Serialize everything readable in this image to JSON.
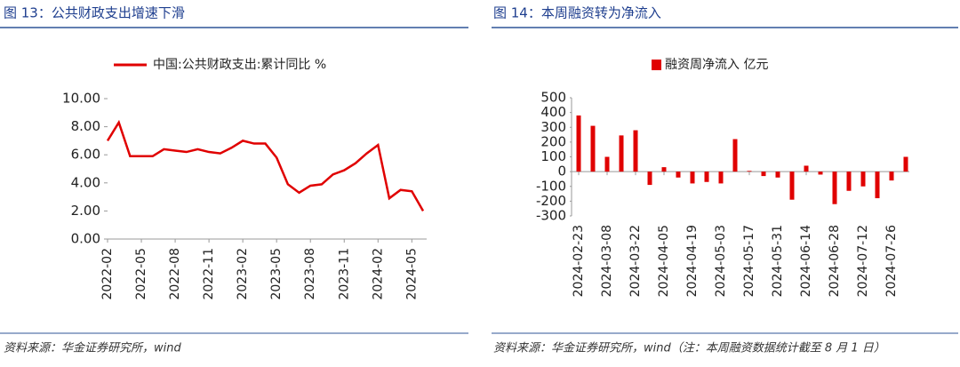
{
  "chart_data": [
    {
      "type": "line",
      "title": "图 13：公共财政支出增速下滑",
      "source": "资料来源：华金证券研究所，wind",
      "categories": [
        "2022-02",
        null,
        null,
        "2022-05",
        null,
        null,
        "2022-08",
        null,
        null,
        "2022-11",
        null,
        null,
        "2023-02",
        null,
        null,
        "2023-05",
        null,
        null,
        "2023-08",
        null,
        null,
        "2023-11",
        null,
        null,
        "2024-02",
        null,
        null,
        "2024-05",
        null
      ],
      "series": [
        {
          "name": "中国:公共财政支出:累计同比 %",
          "color": "#e00000",
          "values": [
            7.0,
            8.3,
            5.9,
            5.9,
            5.9,
            6.4,
            6.3,
            6.2,
            6.4,
            6.2,
            6.1,
            6.5,
            7.0,
            6.8,
            6.8,
            5.8,
            3.9,
            3.3,
            3.8,
            3.9,
            4.6,
            4.9,
            5.4,
            6.1,
            6.7,
            2.9,
            3.5,
            3.4,
            2.0
          ]
        }
      ],
      "ylim": [
        0,
        10
      ],
      "yticks": [
        {
          "value": 0,
          "label": "0.00"
        },
        {
          "value": 2,
          "label": "2.00"
        },
        {
          "value": 4,
          "label": "4.00"
        },
        {
          "value": 6,
          "label": "6.00"
        },
        {
          "value": 8,
          "label": "8.00"
        },
        {
          "value": 10,
          "label": "10.00"
        }
      ],
      "legend": "top"
    },
    {
      "type": "bar",
      "title": "图 14：本周融资转为净流入",
      "source": "资料来源：华金证券研究所，wind（注：本周融资数据统计截至 8 月 1 日）",
      "categories": [
        "2024-02-23",
        null,
        "2024-03-08",
        null,
        "2024-03-22",
        null,
        "2024-04-05",
        null,
        "2024-04-19",
        null,
        "2024-05-03",
        null,
        "2024-05-17",
        null,
        "2024-05-31",
        null,
        "2024-06-14",
        null,
        "2024-06-28",
        null,
        "2024-07-12",
        null,
        "2024-07-26",
        null
      ],
      "series": [
        {
          "name": "融资周净流入 亿元",
          "color": "#e00000",
          "values": [
            380,
            310,
            100,
            245,
            280,
            -90,
            30,
            -40,
            -80,
            -70,
            -80,
            220,
            5,
            -30,
            -40,
            -190,
            40,
            -20,
            -220,
            -130,
            -100,
            -180,
            -60,
            100
          ]
        }
      ],
      "ylim": [
        -300,
        500
      ],
      "yticks": [
        -300,
        -200,
        -100,
        0,
        100,
        200,
        300,
        400,
        500
      ],
      "legend": "top"
    }
  ]
}
